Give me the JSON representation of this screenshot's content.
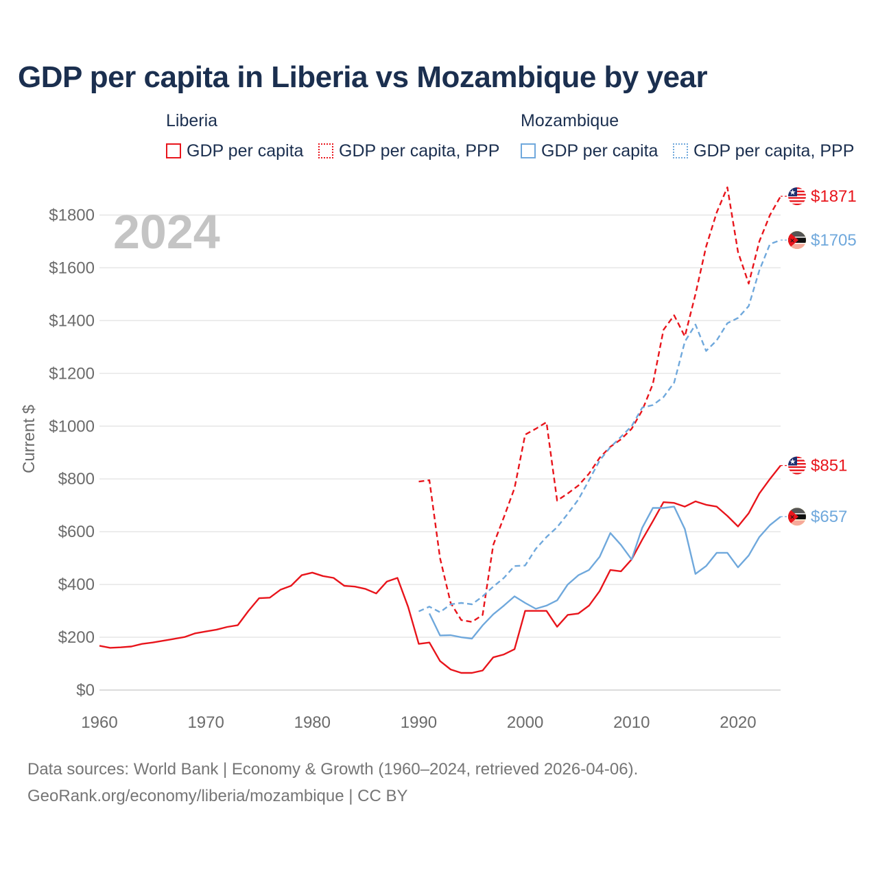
{
  "title": "GDP per capita in Liberia vs Mozambique by year",
  "legend": {
    "groups": [
      {
        "country": "Liberia",
        "items": [
          "GDP per capita",
          "GDP per capita, PPP"
        ]
      },
      {
        "country": "Mozambique",
        "items": [
          "GDP per capita",
          "GDP per capita, PPP"
        ]
      }
    ]
  },
  "year_watermark": "2024",
  "footer": {
    "line1": "Data sources: World Bank | Economy & Growth (1960–2024, retrieved 2026-04-06).",
    "line2": "GeoRank.org/economy/liberia/mozambique | CC BY"
  },
  "colors": {
    "liberia": "#e8141b",
    "mozambique": "#6fa8dc",
    "title": "#1b2f4f",
    "axis_text": "#6b6b6b",
    "grid": "#e6e6e6"
  },
  "chart_data": {
    "type": "line",
    "title": "GDP per capita in Liberia vs Mozambique by year",
    "xlabel": "",
    "ylabel": "Current $",
    "xlim": [
      1960,
      2024
    ],
    "ylim": [
      0,
      1900
    ],
    "x_ticks": [
      1960,
      1970,
      1980,
      1990,
      2000,
      2010,
      2020
    ],
    "y_ticks": [
      0,
      200,
      400,
      600,
      800,
      1000,
      1200,
      1400,
      1600,
      1800
    ],
    "y_tick_labels": [
      "$0",
      "$200",
      "$400",
      "$600",
      "$800",
      "$1000",
      "$1200",
      "$1400",
      "$1600",
      "$1800"
    ],
    "grid": true,
    "series": [
      {
        "name": "Liberia GDP per capita",
        "country": "Liberia",
        "style": "solid",
        "color": "#e8141b",
        "end_label": "$851",
        "flag": "liberia-flag",
        "x": [
          1960,
          1961,
          1962,
          1963,
          1964,
          1965,
          1966,
          1967,
          1968,
          1969,
          1970,
          1971,
          1972,
          1973,
          1974,
          1975,
          1976,
          1977,
          1978,
          1979,
          1980,
          1981,
          1982,
          1983,
          1984,
          1985,
          1986,
          1987,
          1988,
          1989,
          1990,
          1991,
          1992,
          1993,
          1994,
          1995,
          1996,
          1997,
          1998,
          1999,
          2000,
          2001,
          2002,
          2003,
          2004,
          2005,
          2006,
          2007,
          2008,
          2009,
          2010,
          2011,
          2012,
          2013,
          2014,
          2015,
          2016,
          2017,
          2018,
          2019,
          2020,
          2021,
          2022,
          2023,
          2024
        ],
        "y": [
          168,
          160,
          162,
          165,
          175,
          180,
          187,
          194,
          201,
          215,
          222,
          229,
          239,
          246,
          300,
          348,
          350,
          380,
          395,
          435,
          445,
          432,
          425,
          395,
          392,
          383,
          366,
          411,
          425,
          315,
          175,
          180,
          110,
          78,
          65,
          65,
          74,
          124,
          135,
          155,
          300,
          300,
          300,
          240,
          285,
          290,
          320,
          375,
          455,
          450,
          495,
          570,
          640,
          712,
          709,
          695,
          715,
          702,
          695,
          660,
          620,
          670,
          745,
          800,
          851
        ]
      },
      {
        "name": "Liberia GDP per capita, PPP",
        "country": "Liberia",
        "style": "dashed",
        "color": "#e8141b",
        "end_label": "$1871",
        "flag": "liberia-flag",
        "x": [
          1990,
          1991,
          1992,
          1993,
          1994,
          1995,
          1996,
          1997,
          1998,
          1999,
          2000,
          2001,
          2002,
          2003,
          2004,
          2005,
          2006,
          2007,
          2008,
          2009,
          2010,
          2011,
          2012,
          2013,
          2014,
          2015,
          2016,
          2017,
          2018,
          2019,
          2020,
          2021,
          2022,
          2023,
          2024
        ],
        "y": [
          790,
          795,
          500,
          330,
          265,
          258,
          285,
          550,
          655,
          765,
          968,
          990,
          1015,
          718,
          745,
          775,
          820,
          880,
          922,
          950,
          990,
          1060,
          1160,
          1365,
          1420,
          1340,
          1500,
          1680,
          1810,
          1905,
          1660,
          1540,
          1700,
          1800,
          1871
        ]
      },
      {
        "name": "Mozambique GDP per capita",
        "country": "Mozambique",
        "style": "solid",
        "color": "#6fa8dc",
        "end_label": "$657",
        "flag": "mozambique-flag",
        "x": [
          1991,
          1992,
          1993,
          1994,
          1995,
          1996,
          1997,
          1998,
          1999,
          2000,
          2001,
          2002,
          2003,
          2004,
          2005,
          2006,
          2007,
          2008,
          2009,
          2010,
          2011,
          2012,
          2013,
          2014,
          2015,
          2016,
          2017,
          2018,
          2019,
          2020,
          2021,
          2022,
          2023,
          2024
        ],
        "y": [
          290,
          207,
          208,
          200,
          195,
          245,
          287,
          320,
          355,
          330,
          308,
          320,
          340,
          400,
          435,
          455,
          505,
          595,
          550,
          495,
          615,
          690,
          690,
          695,
          610,
          440,
          470,
          520,
          520,
          465,
          510,
          580,
          625,
          657
        ]
      },
      {
        "name": "Mozambique GDP per capita, PPP",
        "country": "Mozambique",
        "style": "dashed",
        "color": "#6fa8dc",
        "end_label": "$1705",
        "flag": "mozambique-flag",
        "x": [
          1990,
          1991,
          1992,
          1993,
          1994,
          1995,
          1996,
          1997,
          1998,
          1999,
          2000,
          2001,
          2002,
          2003,
          2004,
          2005,
          2006,
          2007,
          2008,
          2009,
          2010,
          2011,
          2012,
          2013,
          2014,
          2015,
          2016,
          2017,
          2018,
          2019,
          2020,
          2021,
          2022,
          2023,
          2024
        ],
        "y": [
          298,
          316,
          295,
          325,
          330,
          325,
          355,
          392,
          425,
          470,
          472,
          535,
          580,
          617,
          668,
          722,
          795,
          870,
          920,
          960,
          1000,
          1070,
          1080,
          1110,
          1165,
          1320,
          1385,
          1285,
          1325,
          1390,
          1410,
          1455,
          1590,
          1690,
          1705
        ]
      }
    ]
  }
}
